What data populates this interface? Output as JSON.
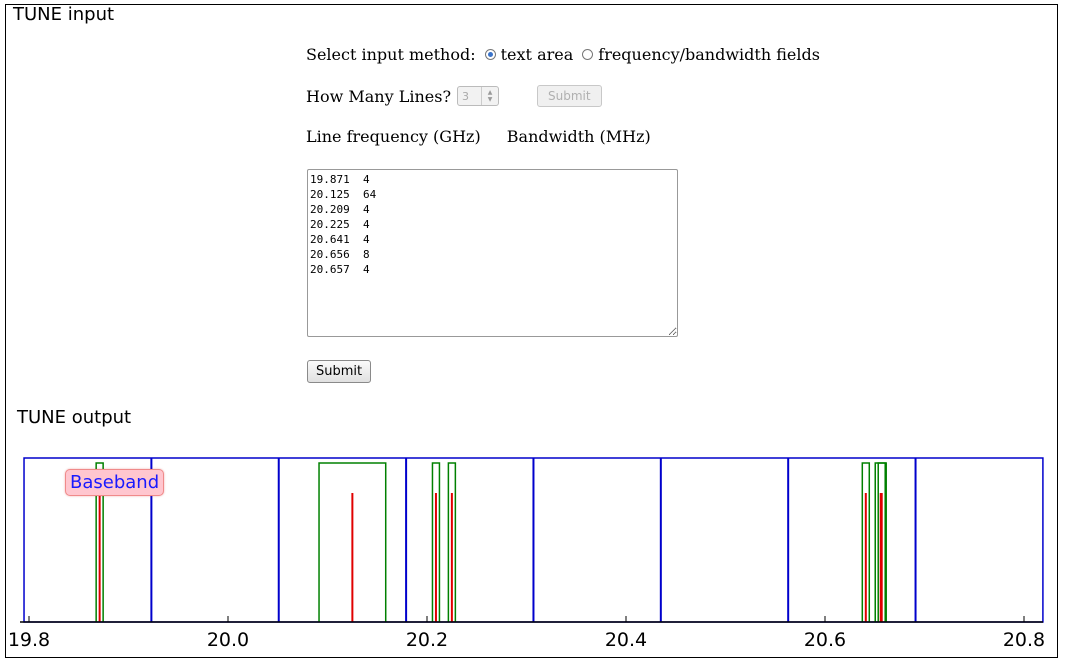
{
  "input_section": {
    "title": "TUNE input",
    "method_label": "Select input method:",
    "method_options": [
      {
        "label": "text area",
        "selected": true
      },
      {
        "label": "frequency/bandwidth fields",
        "selected": false
      }
    ],
    "how_many_label": "How Many Lines?",
    "how_many_value": "3",
    "how_many_submit_label": "Submit",
    "col_freq_label": "Line frequency (GHz)",
    "col_bw_label": "Bandwidth (MHz)",
    "textarea_value": "19.871  4\n20.125  64\n20.209  4\n20.225  4\n20.641  4\n20.656  8\n20.657  4",
    "submit_label": "Submit"
  },
  "output_section": {
    "title": "TUNE output",
    "baseband_label": "Baseband"
  },
  "colors": {
    "baseband_border": "#0000cc",
    "line_window": "#008000",
    "line_marker": "#e00000",
    "baseband_label_bg": "#ffc6cf",
    "baseband_label_text": "#1a1aff"
  },
  "chart_data": {
    "type": "line",
    "x_range": [
      19.795,
      20.825
    ],
    "x_ticks": [
      19.8,
      20.0,
      20.2,
      20.4,
      20.6,
      20.8
    ],
    "x_tick_labels": [
      "19.8",
      "20.0",
      "20.2",
      "20.4",
      "20.6",
      "20.8"
    ],
    "baseband_edges": [
      19.795,
      19.923,
      20.051,
      20.179,
      20.307,
      20.435,
      20.563,
      20.691,
      20.819
    ],
    "lines": [
      {
        "freq": 19.871,
        "bandwidth_mhz": 4
      },
      {
        "freq": 20.125,
        "bandwidth_mhz": 64
      },
      {
        "freq": 20.209,
        "bandwidth_mhz": 4
      },
      {
        "freq": 20.225,
        "bandwidth_mhz": 4
      },
      {
        "freq": 20.641,
        "bandwidth_mhz": 4
      },
      {
        "freq": 20.656,
        "bandwidth_mhz": 8
      },
      {
        "freq": 20.657,
        "bandwidth_mhz": 4
      }
    ],
    "grid": false
  }
}
